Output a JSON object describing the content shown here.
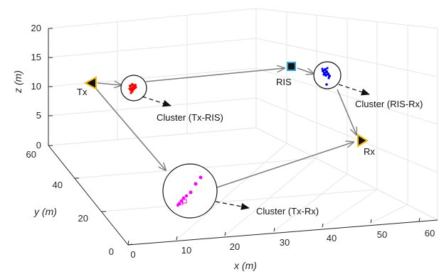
{
  "chart_data": {
    "type": "scatter",
    "projection": "3d",
    "grid": true,
    "colors": {
      "grid": "#e6e6e6",
      "axis": "#262626",
      "arrow": "#808080",
      "tx_rx_fill": "#f5b800",
      "ris_fill": "#29a6e0"
    },
    "axes": {
      "x": {
        "label": "x (m)",
        "ticks": [
          "0",
          "10",
          "20",
          "30",
          "40",
          "50",
          "60"
        ]
      },
      "y": {
        "label": "y (m)",
        "ticks": [
          "0",
          "20",
          "40",
          "60"
        ]
      },
      "z": {
        "label": "z (m)",
        "ticks": [
          "0",
          "5",
          "10",
          "15",
          "20"
        ]
      }
    },
    "nodes": [
      {
        "id": "tx",
        "label": "Tx",
        "marker": "triangle-left"
      },
      {
        "id": "ris",
        "label": "RIS",
        "marker": "square"
      },
      {
        "id": "rx",
        "label": "Rx",
        "marker": "triangle-right"
      }
    ],
    "clusters": [
      {
        "id": "tx-ris",
        "label": "Cluster (Tx-RIS)",
        "color": "#ff0000"
      },
      {
        "id": "ris-rx",
        "label": "Cluster (RIS-Rx)",
        "color": "#0000ff"
      },
      {
        "id": "tx-rx",
        "label": "Cluster (Tx-Rx)",
        "color": "#ff00ff"
      }
    ]
  }
}
